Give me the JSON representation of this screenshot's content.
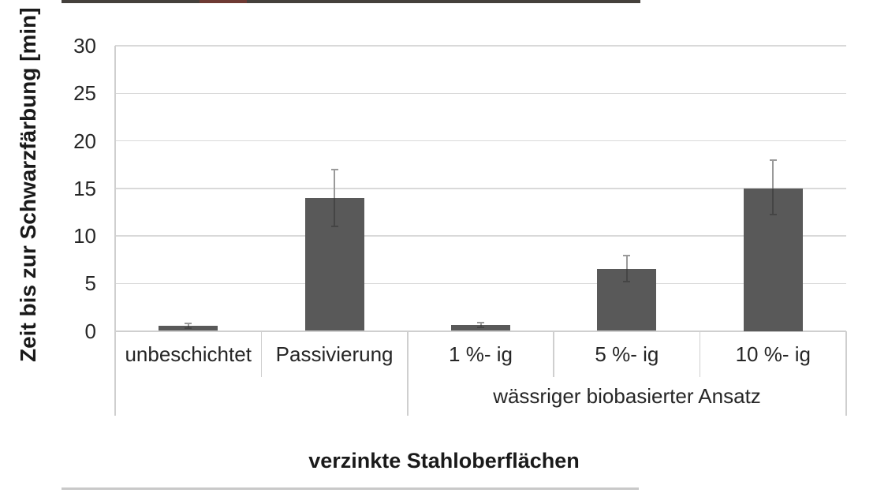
{
  "chart_data": {
    "type": "bar",
    "title": "",
    "ylabel": "Zeit bis zur Schwarzfärbung [min]",
    "xlabel": "verzinkte Stahloberflächen",
    "ylim": [
      0,
      30
    ],
    "yticks": [
      0,
      5,
      10,
      15,
      20,
      25,
      30
    ],
    "grid": "horizontal",
    "legend": "none",
    "categories": [
      "unbeschichtet",
      "Passivierung",
      "1 %- ig",
      "5 %- ig",
      "10 %- ig"
    ],
    "values": [
      0.5,
      14,
      0.65,
      6.5,
      15
    ],
    "error_top": [
      0.75,
      17,
      0.9,
      7.9,
      18
    ],
    "error_bottom": [
      0.25,
      11,
      0.4,
      5.2,
      12.2
    ],
    "group_label": "wässriger biobasierter Ansatz",
    "group_span": [
      2,
      4
    ],
    "bar_color": "#595959",
    "error_bar_upper_color": "#9a9a9a",
    "error_bar_inner_color": "#454545",
    "gridline_color": "#d9d9d9",
    "axis_line_color": "#cfcfcf",
    "text_color": "#262626"
  },
  "decor": {
    "top_rule": "dark crop line",
    "bottom_rule": "light crop line"
  }
}
